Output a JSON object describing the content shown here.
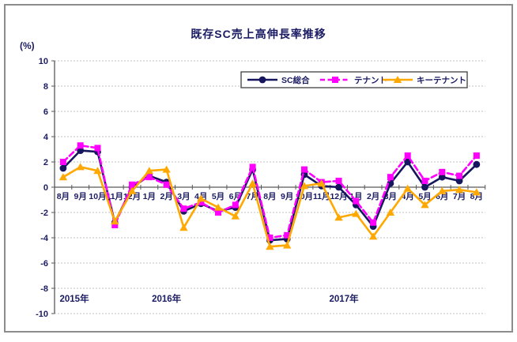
{
  "title": "既存SC売上高伸長率推移",
  "y_axis_unit_label": "(%)",
  "chart_data": {
    "type": "line",
    "title": "既存SC売上高伸長率推移",
    "ylabel": "(%)",
    "ylim": [
      -10,
      10
    ],
    "y_ticks": [
      10,
      8,
      6,
      4,
      2,
      0,
      -2,
      -4,
      -6,
      -8,
      -10
    ],
    "grid": true,
    "legend_position": "top-center-inside",
    "x_tick_labels": [
      "8月",
      "9月",
      "10月",
      "11月",
      "12月",
      "1月",
      "2月",
      "3月",
      "4月",
      "5月",
      "6月",
      "7月",
      "8月",
      "9月",
      "10月",
      "11月",
      "12月",
      "1月",
      "2月",
      "3月",
      "4月",
      "5月",
      "6月",
      "7月",
      "8月"
    ],
    "year_annotations": [
      {
        "label": "2015年",
        "at_index": 0.65
      },
      {
        "label": "2016年",
        "at_index": 6.0
      },
      {
        "label": "2017年",
        "at_index": 16.3
      }
    ],
    "series": [
      {
        "name": "SC総合",
        "color": "#16165f",
        "line_style": "solid",
        "marker": "circle",
        "values": [
          1.5,
          2.9,
          2.8,
          -2.8,
          0.0,
          0.9,
          0.4,
          -1.9,
          -1.3,
          -1.9,
          -1.6,
          1.4,
          -4.2,
          -4.1,
          1.0,
          0.1,
          0.0,
          -1.4,
          -3.1,
          0.3,
          2.0,
          0.0,
          0.8,
          0.5,
          1.8
        ]
      },
      {
        "name": "テナント",
        "color": "#ff00ff",
        "line_style": "dashed",
        "marker": "square",
        "values": [
          2.0,
          3.3,
          3.1,
          -3.0,
          0.2,
          0.8,
          0.2,
          -1.7,
          -1.2,
          -2.0,
          -1.4,
          1.6,
          -4.0,
          -3.8,
          1.4,
          0.4,
          0.5,
          -1.1,
          -2.8,
          0.8,
          2.5,
          0.5,
          1.2,
          0.9,
          2.5
        ]
      },
      {
        "name": "キーテナント",
        "color": "#ffa800",
        "line_style": "solid",
        "marker": "triangle",
        "values": [
          0.8,
          1.6,
          1.3,
          -2.7,
          -0.3,
          1.3,
          1.4,
          -3.2,
          -0.9,
          -1.6,
          -2.3,
          0.3,
          -4.7,
          -4.6,
          0.1,
          0.3,
          -2.4,
          -2.1,
          -3.9,
          -2.0,
          -0.1,
          -1.4,
          -0.3,
          -0.2,
          -0.4
        ]
      }
    ],
    "colors": {
      "label_text": "#1b1b64",
      "grid_line": "#bfbfbf",
      "axis_line": "#595959",
      "legend_border": "#4d4d4d",
      "frame_border": "#8c8c8c"
    }
  }
}
